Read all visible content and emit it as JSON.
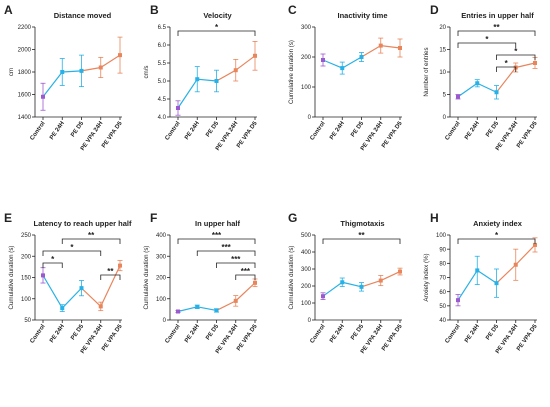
{
  "panel_colors": [
    "#9b59d0",
    "#27b1e6",
    "#27b1e6",
    "#e8855c",
    "#e8855c"
  ],
  "chart_data": [
    {
      "letter": "A",
      "type": "line",
      "title": "Distance moved",
      "categories": [
        "Control",
        "PE 24H",
        "PE D5",
        "PE VPA 24H",
        "PE VPA D5"
      ],
      "ylabel": "cm",
      "ylim": [
        1400,
        2200
      ],
      "yticks": [
        "1400",
        "1600",
        "1800",
        "2000",
        "2200"
      ],
      "values": [
        1580,
        1800,
        1810,
        1840,
        1950
      ],
      "errors": [
        120,
        120,
        140,
        90,
        160
      ],
      "significance": []
    },
    {
      "letter": "B",
      "type": "line",
      "title": "Velocity",
      "categories": [
        "Control",
        "PE 24H",
        "PE D5",
        "PE VPA 24H",
        "PE VPA D5"
      ],
      "ylabel": "cm/s",
      "ylim": [
        4.0,
        6.5
      ],
      "yticks": [
        "4.0",
        "4.5",
        "5.0",
        "5.5",
        "6.0",
        "6.5"
      ],
      "values": [
        4.25,
        5.05,
        5.0,
        5.3,
        5.7
      ],
      "errors": [
        0.2,
        0.35,
        0.3,
        0.3,
        0.4
      ],
      "significance": [
        {
          "from": 0,
          "to": 4,
          "label": "*"
        }
      ]
    },
    {
      "letter": "C",
      "type": "line",
      "title": "Inactivity time",
      "categories": [
        "Control",
        "PE 24H",
        "PE D5",
        "PE VPA 24H",
        "PE VPA D5"
      ],
      "ylabel": "Cumulative duration (s)",
      "ylim": [
        0,
        300
      ],
      "yticks": [
        "0",
        "100",
        "200",
        "300"
      ],
      "values": [
        190,
        163,
        200,
        238,
        230
      ],
      "errors": [
        20,
        20,
        15,
        25,
        30
      ],
      "significance": []
    },
    {
      "letter": "D",
      "type": "line",
      "title": "Entries in upper half",
      "categories": [
        "Control",
        "PE 24H",
        "PE D5",
        "PE VPA 24H",
        "PE VPA D5"
      ],
      "ylabel": "Number of entries",
      "ylim": [
        0,
        20
      ],
      "yticks": [
        "0",
        "5",
        "10",
        "15",
        "20"
      ],
      "values": [
        4.5,
        7.5,
        5.5,
        11,
        12
      ],
      "errors": [
        0.5,
        0.8,
        1.5,
        1.0,
        1.2
      ],
      "significance": [
        {
          "from": 0,
          "to": 4,
          "label": "**"
        },
        {
          "from": 0,
          "to": 3,
          "label": "*"
        },
        {
          "from": 2,
          "to": 4,
          "label": "*"
        },
        {
          "from": 2,
          "to": 3,
          "label": "*"
        }
      ]
    },
    {
      "letter": "E",
      "type": "line",
      "title": "Latency to reach upper half",
      "categories": [
        "Control",
        "PE 24H",
        "PE D5",
        "PE VPA 24H",
        "PE VPA D5"
      ],
      "ylabel": "Cumulative duration (s)",
      "ylim": [
        50,
        250
      ],
      "yticks": [
        "50",
        "100",
        "150",
        "200",
        "250"
      ],
      "values": [
        155,
        78,
        125,
        82,
        178
      ],
      "errors": [
        18,
        8,
        18,
        10,
        12
      ],
      "significance": [
        {
          "from": 1,
          "to": 4,
          "label": "**"
        },
        {
          "from": 0,
          "to": 3,
          "label": "*"
        },
        {
          "from": 0,
          "to": 1,
          "label": "*"
        },
        {
          "from": 3,
          "to": 4,
          "label": "**"
        }
      ]
    },
    {
      "letter": "F",
      "type": "line",
      "title": "In upper half",
      "categories": [
        "Control",
        "PE 24H",
        "PE D5",
        "PE VPA 24H",
        "PE VPA D5"
      ],
      "ylabel": "Cumulative duration (s)",
      "ylim": [
        0,
        400
      ],
      "yticks": [
        "0",
        "100",
        "200",
        "300",
        "400"
      ],
      "values": [
        40,
        62,
        45,
        90,
        175
      ],
      "errors": [
        5,
        8,
        8,
        25,
        18
      ],
      "significance": [
        {
          "from": 0,
          "to": 4,
          "label": "***"
        },
        {
          "from": 1,
          "to": 4,
          "label": "***"
        },
        {
          "from": 2,
          "to": 4,
          "label": "***"
        },
        {
          "from": 3,
          "to": 4,
          "label": "***"
        }
      ]
    },
    {
      "letter": "G",
      "type": "line",
      "title": "Thigmotaxis",
      "categories": [
        "Control",
        "PE 24H",
        "PE D5",
        "PE VPA 24H",
        "PE VPA D5"
      ],
      "ylabel": "Cumulative duration (s)",
      "ylim": [
        0,
        500
      ],
      "yticks": [
        "0",
        "100",
        "200",
        "300",
        "400",
        "500"
      ],
      "values": [
        140,
        222,
        195,
        232,
        285
      ],
      "errors": [
        20,
        25,
        25,
        30,
        20
      ],
      "significance": [
        {
          "from": 0,
          "to": 4,
          "label": "**"
        }
      ]
    },
    {
      "letter": "H",
      "type": "line",
      "title": "Anxiety index",
      "categories": [
        "Control",
        "PE 24H",
        "PE D5",
        "PE VPA 24H",
        "PE VPA D5"
      ],
      "ylabel": "Anxiety index (%)",
      "ylim": [
        40,
        100
      ],
      "yticks": [
        "40",
        "50",
        "60",
        "70",
        "80",
        "90",
        "100"
      ],
      "values": [
        54,
        75,
        66,
        79,
        93
      ],
      "errors": [
        4,
        10,
        10,
        11,
        5
      ],
      "significance": [
        {
          "from": 0,
          "to": 4,
          "label": "*"
        }
      ]
    }
  ]
}
